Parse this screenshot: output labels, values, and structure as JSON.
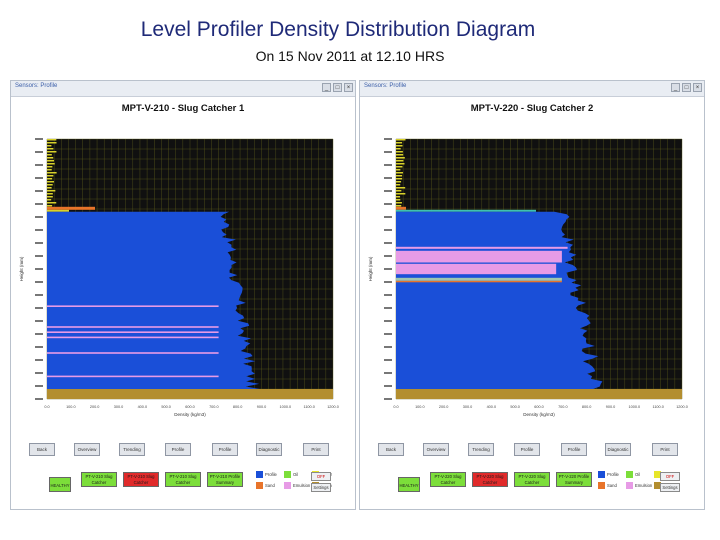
{
  "slide": {
    "title": "Level Profiler Density Distribution Diagram",
    "subtitle": "On 15 Nov 2011 at 12.10 HRS"
  },
  "colors": {
    "blue_fill": "#1a4fd8",
    "magenta_layer": "#e79be6",
    "orange_top": "#e8742a",
    "brown_base": "#b38e2f",
    "yellow_grid": "#d9d22a",
    "dark_bg": "#101010",
    "status_green": "#7cde3a",
    "status_red": "#e02a2a"
  },
  "panels": [
    {
      "window_title": "Sensors: Profile",
      "title": "MPT-V-210 - Slug Catcher 1",
      "y_axis_label": "Height (mm)",
      "x_axis_label": "Density (kg/m3)",
      "nav_buttons": [
        "Back",
        "Overview",
        "Trending",
        "Profile",
        "Profile",
        "Diagnostic",
        "Print"
      ],
      "status_buttons": [
        {
          "label": "HEALTHY",
          "state": "green"
        },
        {
          "label": "PT-V-210 Slug Catcher",
          "state": "green"
        },
        {
          "label": "PT-V-210 Slug Catcher",
          "state": "red"
        },
        {
          "label": "PT-V-210 Slug Catcher",
          "state": "green"
        },
        {
          "label": "PT-V-210 Profile Summary",
          "state": "green"
        }
      ],
      "legend": [
        "Profile",
        "Oil",
        "Water",
        "Sand",
        "Emulsion",
        "Foam"
      ],
      "mini_buttons": [
        "OFF",
        "Settings"
      ],
      "chart_data": {
        "type": "area",
        "x_ticks": [
          "0.0",
          "100.0",
          "200.0",
          "300.0",
          "400.0",
          "500.0",
          "600.0",
          "700.0",
          "800.0",
          "900.0",
          "1000.0",
          "1100.0",
          "1200.0"
        ],
        "y_range": [
          0,
          1
        ],
        "liquid_level_fraction": 0.72,
        "interface_lines_fraction": [
          0.36,
          0.28,
          0.26,
          0.24,
          0.18,
          0.09
        ]
      }
    },
    {
      "window_title": "Sensors: Profile",
      "title": "MPT-V-220 - Slug Catcher 2",
      "y_axis_label": "Height (mm)",
      "x_axis_label": "Density (kg/m3)",
      "nav_buttons": [
        "Back",
        "Overview",
        "Trending",
        "Profile",
        "Profile",
        "Diagnostic",
        "Print"
      ],
      "status_buttons": [
        {
          "label": "HEALTHY",
          "state": "green"
        },
        {
          "label": "PT-V-220 Slug Catcher",
          "state": "green"
        },
        {
          "label": "PT-V-220 Slug Catcher",
          "state": "red"
        },
        {
          "label": "PT-V-220 Slug Catcher",
          "state": "green"
        },
        {
          "label": "PT-V-220 Profile Summary",
          "state": "green"
        }
      ],
      "legend": [
        "Profile",
        "Oil",
        "Water",
        "Sand",
        "Emulsion",
        "Foam"
      ],
      "mini_buttons": [
        "OFF",
        "Settings"
      ],
      "chart_data": {
        "type": "area",
        "x_ticks": [
          "0.0",
          "100.0",
          "200.0",
          "300.0",
          "400.0",
          "500.0",
          "600.0",
          "700.0",
          "800.0",
          "900.0",
          "1000.0",
          "1100.0",
          "1200.0"
        ],
        "y_range": [
          0,
          1
        ],
        "liquid_level_fraction": 0.72,
        "pink_band_fraction": [
          0.47,
          0.57
        ]
      }
    }
  ]
}
